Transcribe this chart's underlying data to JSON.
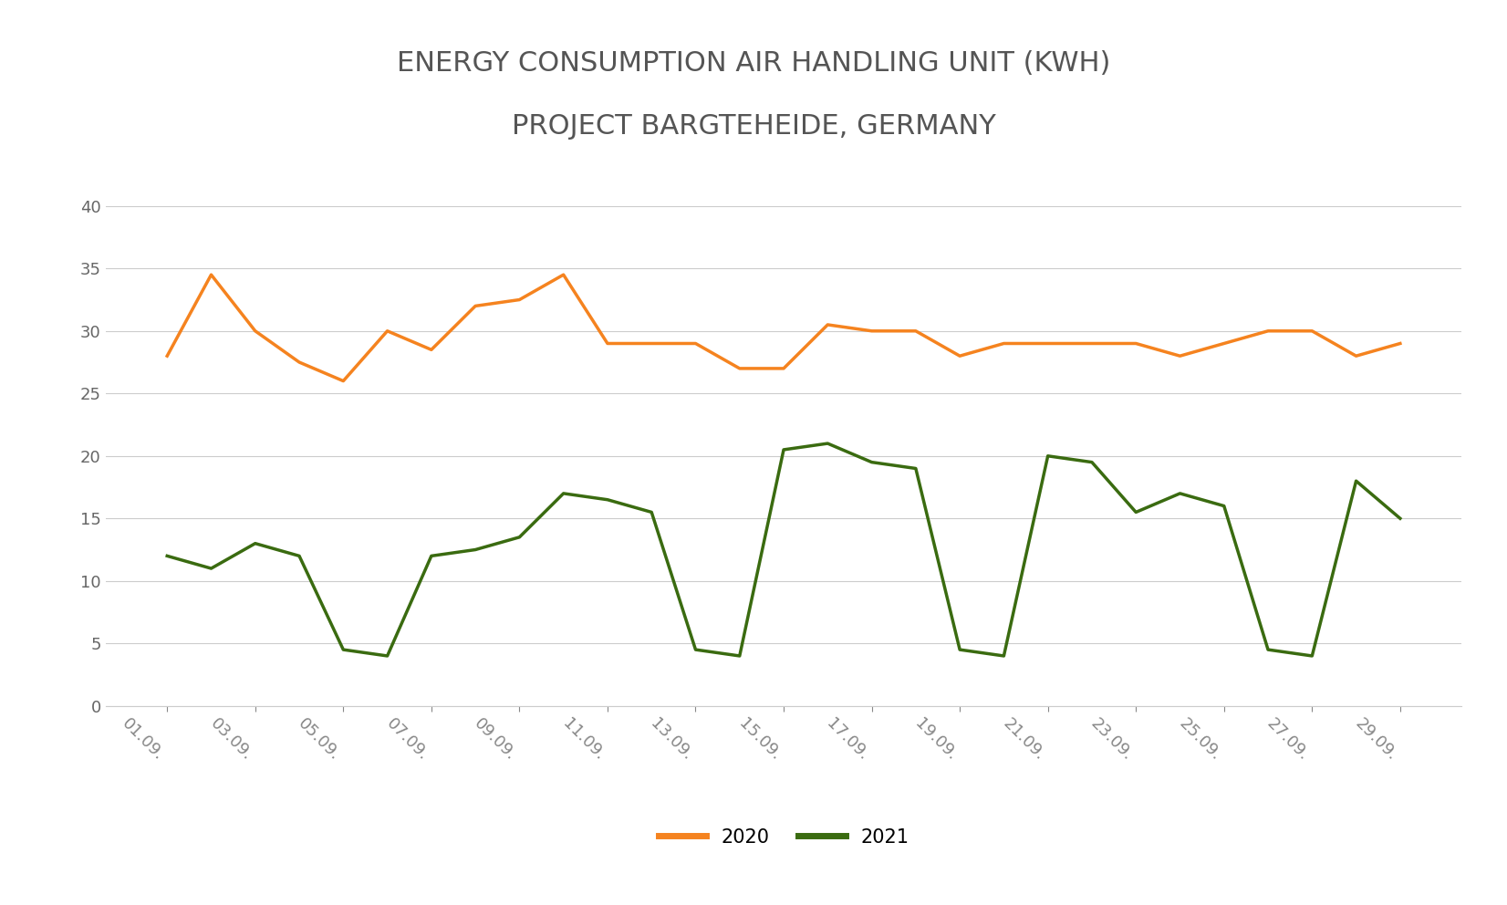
{
  "title_line1": "ENERGY CONSUMPTION AIR HANDLING UNIT (KWH)",
  "title_line2": "PROJECT BARGTEHEIDE, GERMANY",
  "x_labels": [
    "01.09.",
    "03.09.",
    "05.09.",
    "07.09.",
    "09.09.",
    "11.09.",
    "13.09.",
    "15.09.",
    "17.09.",
    "19.09.",
    "21.09.",
    "23.09.",
    "25.09.",
    "27.09.",
    "29.09."
  ],
  "color_2020": "#f5831f",
  "color_2021": "#3a6b10",
  "ylim": [
    0,
    42
  ],
  "yticks": [
    0,
    5,
    10,
    15,
    20,
    25,
    30,
    35,
    40
  ],
  "background_color": "#ffffff",
  "grid_color": "#cccccc",
  "linewidth": 2.5,
  "orange_29": [
    28,
    34.5,
    30,
    27.5,
    26,
    30,
    28.5,
    32,
    32.5,
    34.5,
    29,
    29,
    29,
    27,
    27,
    30.5,
    30,
    30,
    28,
    29,
    29,
    29,
    29,
    28,
    29,
    30,
    30,
    28,
    29
  ],
  "green_29": [
    12,
    11,
    13,
    12,
    4.5,
    4,
    12,
    12.5,
    13.5,
    17,
    16.5,
    15.5,
    4.5,
    4,
    20.5,
    21,
    19.5,
    19,
    4.5,
    4,
    20,
    19.5,
    15.5,
    17,
    16,
    4.5,
    4,
    18,
    15
  ]
}
